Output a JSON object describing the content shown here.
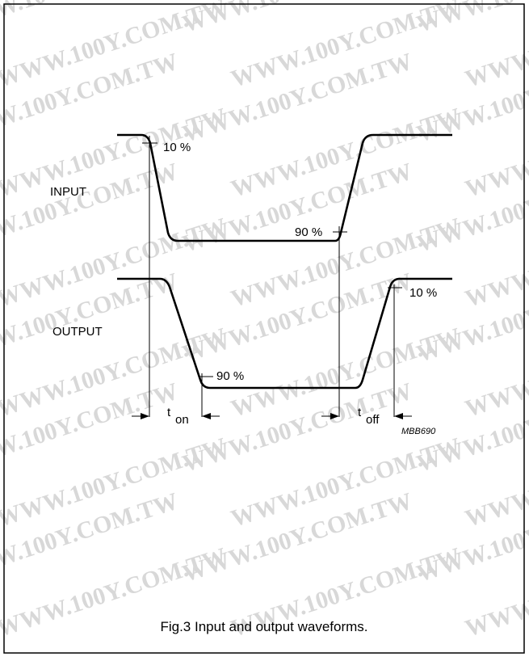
{
  "signals": {
    "input": "INPUT",
    "output": "OUTPUT"
  },
  "levels": {
    "input_start": "10 %",
    "input_end": "90 %",
    "output_start": "90 %",
    "output_end": "10 %"
  },
  "intervals": {
    "on": {
      "symbol": "t",
      "subscript": "on"
    },
    "off": {
      "symbol": "t",
      "subscript": "off"
    }
  },
  "figure_code": "MBB690",
  "caption": "Fig.3  Input and output waveforms.",
  "watermark": "WWW.100Y.COM.TW"
}
